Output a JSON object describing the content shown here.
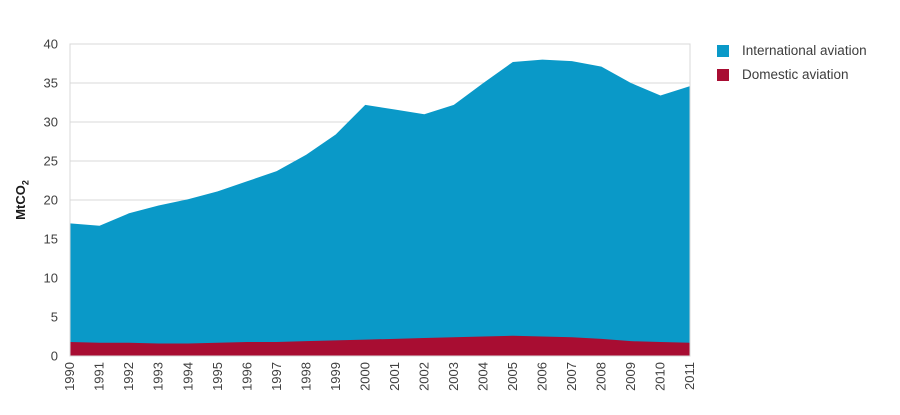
{
  "chart_data": {
    "type": "area",
    "stacked": true,
    "title": "",
    "ylabel_main": "MtCO",
    "ylabel_sub": "2",
    "xlabel": "",
    "x": [
      1990,
      1991,
      1992,
      1993,
      1994,
      1995,
      1996,
      1997,
      1998,
      1999,
      2000,
      2001,
      2002,
      2003,
      2004,
      2005,
      2006,
      2007,
      2008,
      2009,
      2010,
      2011
    ],
    "series": [
      {
        "name": "Domestic aviation",
        "color": "#a80d32",
        "values": [
          1.8,
          1.7,
          1.7,
          1.6,
          1.6,
          1.7,
          1.8,
          1.8,
          1.9,
          2.0,
          2.1,
          2.2,
          2.3,
          2.4,
          2.5,
          2.6,
          2.5,
          2.4,
          2.2,
          1.9,
          1.8,
          1.7
        ]
      },
      {
        "name": "International aviation",
        "color": "#0a99c8",
        "values": [
          15.2,
          15.0,
          16.6,
          17.7,
          18.5,
          19.4,
          20.6,
          21.9,
          23.9,
          26.4,
          30.1,
          29.4,
          28.7,
          29.8,
          32.5,
          35.1,
          35.5,
          35.4,
          34.9,
          33.1,
          31.6,
          32.9
        ]
      }
    ],
    "totals": [
      17.0,
      16.7,
      18.3,
      19.3,
      20.1,
      21.1,
      22.4,
      23.7,
      25.8,
      28.4,
      32.2,
      31.6,
      31.0,
      32.2,
      35.0,
      37.7,
      38.0,
      37.8,
      37.1,
      35.0,
      33.4,
      34.6
    ],
    "legend": [
      {
        "label": "International aviation",
        "color": "#0a99c8"
      },
      {
        "label": "Domestic aviation",
        "color": "#a80d32"
      }
    ],
    "legend_position": "top-right",
    "y_ticks": [
      0,
      5,
      10,
      15,
      20,
      25,
      30,
      35,
      40
    ],
    "ylim": [
      0,
      40
    ],
    "grid": true,
    "colors": {
      "grid": "#d8d8d8",
      "text": "#404040",
      "background": "#ffffff"
    }
  }
}
